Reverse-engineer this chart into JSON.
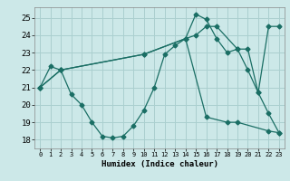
{
  "xlabel": "Humidex (Indice chaleur)",
  "background_color": "#cce8e8",
  "grid_color": "#aacfcf",
  "line_color": "#1a6e64",
  "ylim": [
    17.5,
    25.6
  ],
  "xlim": [
    -0.5,
    23.5
  ],
  "yticks": [
    18,
    19,
    20,
    21,
    22,
    23,
    24,
    25
  ],
  "xticks": [
    0,
    1,
    2,
    3,
    4,
    5,
    6,
    7,
    8,
    9,
    10,
    11,
    12,
    13,
    14,
    15,
    16,
    17,
    18,
    19,
    20,
    21,
    22,
    23
  ],
  "series": [
    {
      "x": [
        0,
        1,
        2,
        3,
        4,
        5,
        6,
        7,
        8,
        9,
        10,
        11,
        12,
        13,
        14,
        15,
        16,
        17,
        18,
        19,
        20,
        21,
        22,
        23
      ],
      "y": [
        21.0,
        22.2,
        22.0,
        20.6,
        20.0,
        19.0,
        18.2,
        18.1,
        18.2,
        18.8,
        19.7,
        21.0,
        22.9,
        23.4,
        23.8,
        25.2,
        24.9,
        23.8,
        23.0,
        23.2,
        22.0,
        20.7,
        19.5,
        18.4
      ]
    },
    {
      "x": [
        0,
        2,
        10,
        14,
        15,
        16,
        17,
        19,
        20,
        21,
        22,
        23
      ],
      "y": [
        21.0,
        22.0,
        22.9,
        23.8,
        24.0,
        24.5,
        24.5,
        23.2,
        23.2,
        20.7,
        24.5,
        24.5
      ]
    },
    {
      "x": [
        0,
        2,
        10,
        14,
        16,
        18,
        19,
        22,
        23
      ],
      "y": [
        21.0,
        22.0,
        22.9,
        23.8,
        19.3,
        19.0,
        19.0,
        18.5,
        18.4
      ]
    }
  ]
}
